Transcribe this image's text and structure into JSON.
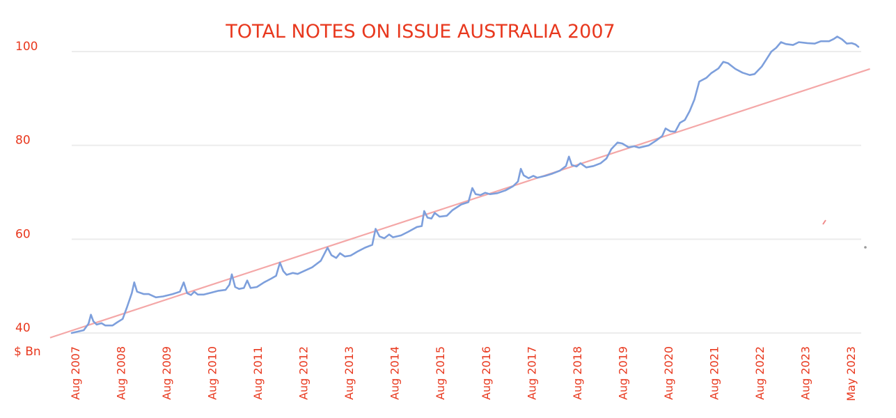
{
  "chart_data": {
    "type": "line",
    "title": "TOTAL NOTES ON ISSUE AUSTRALIA 2007",
    "ylabel": "$ Bn",
    "xlabel": "",
    "ylim": [
      38,
      104
    ],
    "yticks": [
      40,
      60,
      80,
      100
    ],
    "grid": true,
    "x_tick_labels": [
      "Aug 2007",
      "Aug 2008",
      "Aug 2009",
      "Aug 2010",
      "Aug 2011",
      "Aug 2012",
      "Aug 2013",
      "Aug 2014",
      "Aug 2015",
      "Aug 2016",
      "Aug 2017",
      "Aug 2018",
      "Aug 2019",
      "Aug 2020",
      "Aug 2021",
      "Aug 2022",
      "Aug 2023",
      "May 2023"
    ],
    "series": [
      {
        "values": [
          [
            2007.6,
            40.0
          ],
          [
            2007.85,
            40.6
          ],
          [
            2007.95,
            42.0
          ],
          [
            2008.0,
            43.9
          ],
          [
            2008.05,
            42.5
          ],
          [
            2008.12,
            41.8
          ],
          [
            2008.22,
            42.1
          ],
          [
            2008.3,
            41.6
          ],
          [
            2008.45,
            41.6
          ],
          [
            2008.55,
            42.3
          ],
          [
            2008.66,
            43.0
          ],
          [
            2008.75,
            45.5
          ],
          [
            2008.85,
            48.5
          ],
          [
            2008.9,
            50.8
          ],
          [
            2008.96,
            48.8
          ],
          [
            2009.1,
            48.3
          ],
          [
            2009.2,
            48.3
          ],
          [
            2009.35,
            47.6
          ],
          [
            2009.5,
            47.8
          ],
          [
            2009.7,
            48.3
          ],
          [
            2009.85,
            48.8
          ],
          [
            2009.93,
            50.8
          ],
          [
            2010.0,
            48.5
          ],
          [
            2010.08,
            48.1
          ],
          [
            2010.15,
            48.8
          ],
          [
            2010.22,
            48.2
          ],
          [
            2010.35,
            48.2
          ],
          [
            2010.5,
            48.6
          ],
          [
            2010.65,
            49.0
          ],
          [
            2010.8,
            49.2
          ],
          [
            2010.88,
            50.3
          ],
          [
            2010.93,
            52.5
          ],
          [
            2011.0,
            49.8
          ],
          [
            2011.08,
            49.4
          ],
          [
            2011.18,
            49.6
          ],
          [
            2011.25,
            51.2
          ],
          [
            2011.32,
            49.6
          ],
          [
            2011.45,
            49.8
          ],
          [
            2011.6,
            50.8
          ],
          [
            2011.75,
            51.6
          ],
          [
            2011.85,
            52.2
          ],
          [
            2011.93,
            55.0
          ],
          [
            2012.0,
            53.2
          ],
          [
            2012.07,
            52.4
          ],
          [
            2012.2,
            52.8
          ],
          [
            2012.3,
            52.6
          ],
          [
            2012.45,
            53.3
          ],
          [
            2012.6,
            54.0
          ],
          [
            2012.78,
            55.4
          ],
          [
            2012.92,
            58.2
          ],
          [
            2013.0,
            56.6
          ],
          [
            2013.1,
            56.0
          ],
          [
            2013.18,
            57.0
          ],
          [
            2013.28,
            56.3
          ],
          [
            2013.4,
            56.5
          ],
          [
            2013.55,
            57.4
          ],
          [
            2013.7,
            58.2
          ],
          [
            2013.85,
            58.8
          ],
          [
            2013.92,
            62.2
          ],
          [
            2014.0,
            60.6
          ],
          [
            2014.1,
            60.2
          ],
          [
            2014.2,
            61.0
          ],
          [
            2014.28,
            60.4
          ],
          [
            2014.45,
            60.8
          ],
          [
            2014.6,
            61.6
          ],
          [
            2014.78,
            62.6
          ],
          [
            2014.88,
            62.8
          ],
          [
            2014.93,
            66.0
          ],
          [
            2015.0,
            64.6
          ],
          [
            2015.08,
            64.4
          ],
          [
            2015.15,
            65.6
          ],
          [
            2015.25,
            64.8
          ],
          [
            2015.4,
            65.0
          ],
          [
            2015.52,
            66.2
          ],
          [
            2015.7,
            67.4
          ],
          [
            2015.85,
            67.9
          ],
          [
            2015.93,
            70.9
          ],
          [
            2016.0,
            69.6
          ],
          [
            2016.1,
            69.4
          ],
          [
            2016.2,
            69.9
          ],
          [
            2016.3,
            69.6
          ],
          [
            2016.45,
            69.8
          ],
          [
            2016.62,
            70.4
          ],
          [
            2016.78,
            71.3
          ],
          [
            2016.88,
            72.3
          ],
          [
            2016.94,
            75.0
          ],
          [
            2017.0,
            73.6
          ],
          [
            2017.1,
            73.0
          ],
          [
            2017.2,
            73.5
          ],
          [
            2017.28,
            73.1
          ],
          [
            2017.45,
            73.5
          ],
          [
            2017.6,
            74.0
          ],
          [
            2017.75,
            74.6
          ],
          [
            2017.88,
            75.6
          ],
          [
            2017.94,
            77.6
          ],
          [
            2018.0,
            75.8
          ],
          [
            2018.1,
            75.5
          ],
          [
            2018.18,
            76.2
          ],
          [
            2018.3,
            75.3
          ],
          [
            2018.45,
            75.6
          ],
          [
            2018.6,
            76.2
          ],
          [
            2018.72,
            77.2
          ],
          [
            2018.82,
            79.2
          ],
          [
            2018.95,
            80.6
          ],
          [
            2019.05,
            80.4
          ],
          [
            2019.18,
            79.6
          ],
          [
            2019.3,
            79.8
          ],
          [
            2019.4,
            79.5
          ],
          [
            2019.6,
            80.0
          ],
          [
            2019.75,
            81.0
          ],
          [
            2019.88,
            82.0
          ],
          [
            2019.95,
            83.6
          ],
          [
            2020.05,
            83.0
          ],
          [
            2020.15,
            82.9
          ],
          [
            2020.25,
            84.8
          ],
          [
            2020.35,
            85.4
          ],
          [
            2020.45,
            87.3
          ],
          [
            2020.55,
            89.8
          ],
          [
            2020.65,
            93.6
          ],
          [
            2020.8,
            94.4
          ],
          [
            2020.9,
            95.4
          ],
          [
            2021.05,
            96.4
          ],
          [
            2021.15,
            97.8
          ],
          [
            2021.25,
            97.5
          ],
          [
            2021.4,
            96.3
          ],
          [
            2021.55,
            95.5
          ],
          [
            2021.7,
            95.0
          ],
          [
            2021.8,
            95.2
          ],
          [
            2021.95,
            96.8
          ],
          [
            2022.05,
            98.4
          ],
          [
            2022.15,
            100.0
          ],
          [
            2022.25,
            100.8
          ],
          [
            2022.35,
            102.0
          ],
          [
            2022.45,
            101.6
          ],
          [
            2022.6,
            101.4
          ],
          [
            2022.72,
            102.0
          ],
          [
            2022.9,
            101.8
          ],
          [
            2023.05,
            101.7
          ],
          [
            2023.18,
            102.2
          ],
          [
            2023.35,
            102.2
          ],
          [
            2023.45,
            102.7
          ],
          [
            2023.52,
            103.2
          ],
          [
            2023.62,
            102.6
          ],
          [
            2023.72,
            101.7
          ],
          [
            2023.82,
            101.8
          ],
          [
            2023.9,
            101.5
          ],
          [
            2023.96,
            101.0
          ]
        ]
      }
    ],
    "trendline": [
      [
        2007.15,
        39.0
      ],
      [
        2024.2,
        96.3
      ]
    ],
    "colors": {
      "text": "#e8381e",
      "series": "#7d9fdc",
      "trend": "#f4a7a7",
      "grid": "#ececec"
    }
  }
}
